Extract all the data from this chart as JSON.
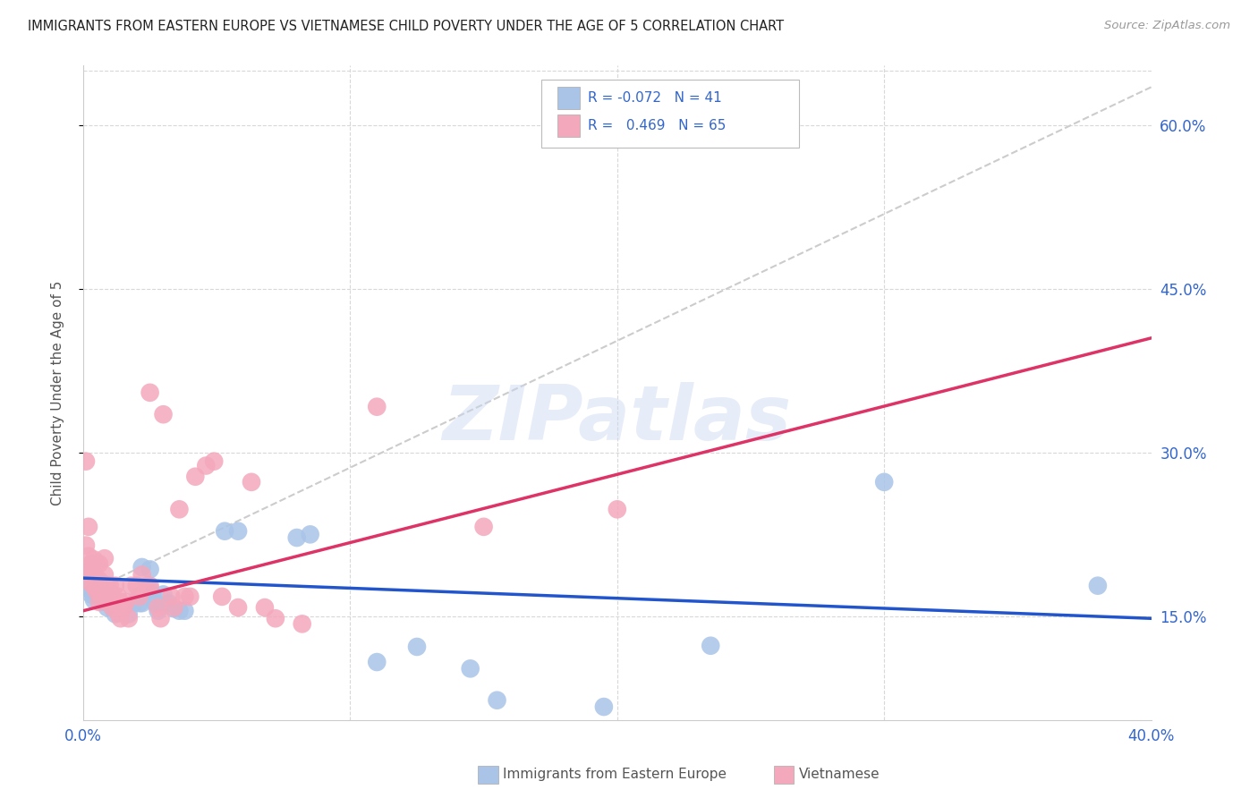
{
  "title": "IMMIGRANTS FROM EASTERN EUROPE VS VIETNAMESE CHILD POVERTY UNDER THE AGE OF 5 CORRELATION CHART",
  "source": "Source: ZipAtlas.com",
  "ylabel": "Child Poverty Under the Age of 5",
  "yticks": [
    "15.0%",
    "30.0%",
    "45.0%",
    "60.0%"
  ],
  "ytick_vals": [
    0.15,
    0.3,
    0.45,
    0.6
  ],
  "xlim": [
    0.0,
    0.4
  ],
  "ylim": [
    0.055,
    0.655
  ],
  "watermark": "ZIPatlas",
  "blue_line_color": "#2255cc",
  "pink_line_color": "#dd3366",
  "blue_scatter_color": "#aac4e8",
  "pink_scatter_color": "#f4a8bc",
  "dashed_line": [
    [
      0.0,
      0.17
    ],
    [
      0.4,
      0.635
    ]
  ],
  "blue_dots": [
    [
      0.001,
      0.19
    ],
    [
      0.002,
      0.175
    ],
    [
      0.003,
      0.17
    ],
    [
      0.004,
      0.165
    ],
    [
      0.005,
      0.172
    ],
    [
      0.006,
      0.168
    ],
    [
      0.007,
      0.175
    ],
    [
      0.008,
      0.163
    ],
    [
      0.009,
      0.158
    ],
    [
      0.01,
      0.172
    ],
    [
      0.011,
      0.158
    ],
    [
      0.012,
      0.152
    ],
    [
      0.013,
      0.163
    ],
    [
      0.015,
      0.158
    ],
    [
      0.017,
      0.152
    ],
    [
      0.019,
      0.162
    ],
    [
      0.021,
      0.162
    ],
    [
      0.022,
      0.195
    ],
    [
      0.022,
      0.162
    ],
    [
      0.025,
      0.193
    ],
    [
      0.025,
      0.175
    ],
    [
      0.026,
      0.17
    ],
    [
      0.027,
      0.162
    ],
    [
      0.028,
      0.155
    ],
    [
      0.03,
      0.17
    ],
    [
      0.032,
      0.162
    ],
    [
      0.034,
      0.157
    ],
    [
      0.036,
      0.155
    ],
    [
      0.038,
      0.155
    ],
    [
      0.053,
      0.228
    ],
    [
      0.058,
      0.228
    ],
    [
      0.08,
      0.222
    ],
    [
      0.085,
      0.225
    ],
    [
      0.11,
      0.108
    ],
    [
      0.125,
      0.122
    ],
    [
      0.145,
      0.102
    ],
    [
      0.155,
      0.073
    ],
    [
      0.195,
      0.067
    ],
    [
      0.235,
      0.123
    ],
    [
      0.3,
      0.273
    ],
    [
      0.38,
      0.178
    ]
  ],
  "pink_dots": [
    [
      0.001,
      0.292
    ],
    [
      0.001,
      0.215
    ],
    [
      0.002,
      0.232
    ],
    [
      0.002,
      0.205
    ],
    [
      0.002,
      0.195
    ],
    [
      0.003,
      0.198
    ],
    [
      0.003,
      0.188
    ],
    [
      0.003,
      0.18
    ],
    [
      0.004,
      0.202
    ],
    [
      0.004,
      0.188
    ],
    [
      0.004,
      0.178
    ],
    [
      0.005,
      0.198
    ],
    [
      0.005,
      0.183
    ],
    [
      0.005,
      0.173
    ],
    [
      0.006,
      0.198
    ],
    [
      0.006,
      0.183
    ],
    [
      0.006,
      0.173
    ],
    [
      0.006,
      0.163
    ],
    [
      0.007,
      0.178
    ],
    [
      0.007,
      0.168
    ],
    [
      0.008,
      0.203
    ],
    [
      0.008,
      0.188
    ],
    [
      0.008,
      0.175
    ],
    [
      0.009,
      0.178
    ],
    [
      0.009,
      0.168
    ],
    [
      0.01,
      0.178
    ],
    [
      0.01,
      0.163
    ],
    [
      0.011,
      0.168
    ],
    [
      0.011,
      0.158
    ],
    [
      0.012,
      0.178
    ],
    [
      0.012,
      0.163
    ],
    [
      0.013,
      0.168
    ],
    [
      0.013,
      0.153
    ],
    [
      0.014,
      0.163
    ],
    [
      0.014,
      0.148
    ],
    [
      0.015,
      0.158
    ],
    [
      0.016,
      0.163
    ],
    [
      0.017,
      0.148
    ],
    [
      0.018,
      0.178
    ],
    [
      0.02,
      0.178
    ],
    [
      0.021,
      0.168
    ],
    [
      0.022,
      0.188
    ],
    [
      0.024,
      0.178
    ],
    [
      0.025,
      0.355
    ],
    [
      0.025,
      0.178
    ],
    [
      0.028,
      0.158
    ],
    [
      0.029,
      0.148
    ],
    [
      0.03,
      0.335
    ],
    [
      0.033,
      0.168
    ],
    [
      0.034,
      0.158
    ],
    [
      0.036,
      0.248
    ],
    [
      0.038,
      0.168
    ],
    [
      0.04,
      0.168
    ],
    [
      0.042,
      0.278
    ],
    [
      0.046,
      0.288
    ],
    [
      0.049,
      0.292
    ],
    [
      0.052,
      0.168
    ],
    [
      0.058,
      0.158
    ],
    [
      0.063,
      0.273
    ],
    [
      0.068,
      0.158
    ],
    [
      0.072,
      0.148
    ],
    [
      0.082,
      0.143
    ],
    [
      0.11,
      0.342
    ],
    [
      0.15,
      0.232
    ],
    [
      0.2,
      0.248
    ]
  ],
  "blue_line_endpoints": [
    [
      0.0,
      0.185
    ],
    [
      0.4,
      0.148
    ]
  ],
  "pink_line_endpoints": [
    [
      0.0,
      0.155
    ],
    [
      0.4,
      0.405
    ]
  ]
}
